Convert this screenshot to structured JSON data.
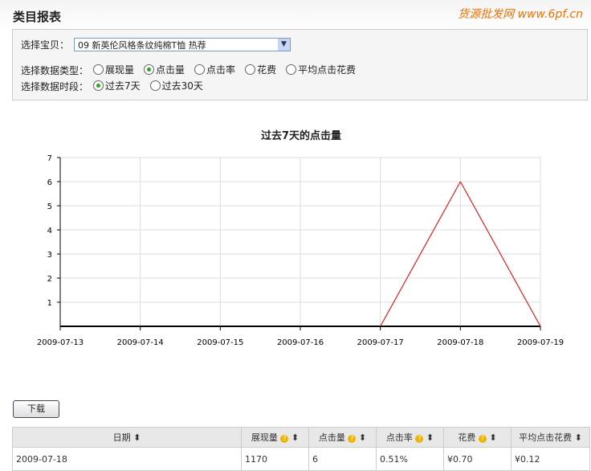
{
  "page": {
    "title": "类目报表"
  },
  "filters": {
    "item_label": "选择宝贝：",
    "item_value": "09 新英伦风格条纹纯棉T恤 热荐",
    "type_label": "选择数据类型：",
    "types": [
      {
        "label": "展现量",
        "checked": false
      },
      {
        "label": "点击量",
        "checked": true
      },
      {
        "label": "点击率",
        "checked": false
      },
      {
        "label": "花费",
        "checked": false
      },
      {
        "label": "平均点击花费",
        "checked": false
      }
    ],
    "period_label": "选择数据时段：",
    "periods": [
      {
        "label": "过去7天",
        "checked": true
      },
      {
        "label": "过去30天",
        "checked": false
      }
    ]
  },
  "chart_data": {
    "type": "line",
    "title": "过去7天的点击量",
    "x": [
      "2009-07-13",
      "2009-07-14",
      "2009-07-15",
      "2009-07-16",
      "2009-07-17",
      "2009-07-18",
      "2009-07-19"
    ],
    "values": [
      0,
      0,
      0,
      0,
      0,
      6,
      0
    ],
    "ylim": [
      0,
      7
    ],
    "yticks": [
      1,
      2,
      3,
      4,
      5,
      6,
      7
    ],
    "grid": true,
    "line_color": "#e02020"
  },
  "download_label": "下载",
  "table": {
    "headers": [
      "日期",
      "展现量",
      "点击量",
      "点击率",
      "花费",
      "平均点击花费"
    ],
    "rows": [
      [
        "2009-07-18",
        "1170",
        "6",
        "0.51%",
        "¥0.70",
        "¥0.12"
      ]
    ]
  },
  "watermark": "货源批发网 www.6pf.cn"
}
